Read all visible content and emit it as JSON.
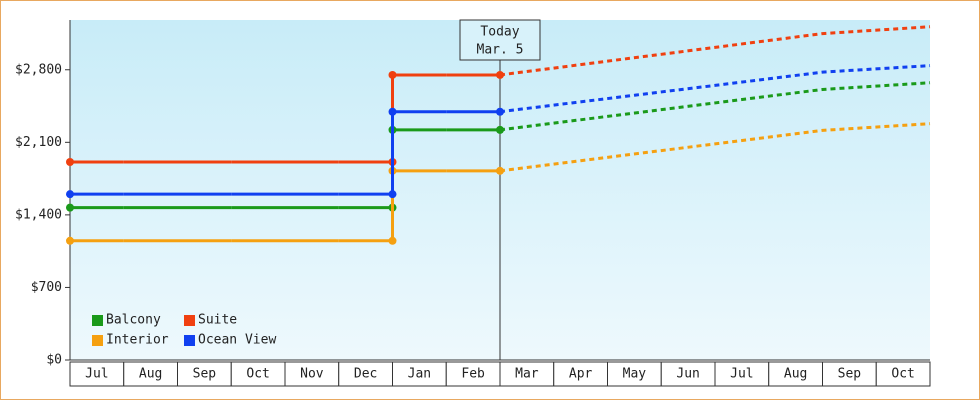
{
  "chart_data": {
    "type": "step-line",
    "categories": [
      "Jul",
      "Aug",
      "Sep",
      "Oct",
      "Nov",
      "Dec",
      "Jan",
      "Feb",
      "Mar",
      "Apr",
      "May",
      "Jun",
      "Jul",
      "Aug",
      "Sep",
      "Oct"
    ],
    "series": [
      {
        "name": "Balcony",
        "color": "#1a9a1a",
        "values": [
          1470,
          1470,
          1470,
          1470,
          1470,
          1470,
          2220,
          2220,
          2220,
          2285,
          2350,
          2415,
          2480,
          2545,
          2610,
          2675
        ]
      },
      {
        "name": "Suite",
        "color": "#f04010",
        "values": [
          1910,
          1910,
          1910,
          1910,
          1910,
          1910,
          2750,
          2750,
          2750,
          2816,
          2883,
          2949,
          3016,
          3082,
          3149,
          3215
        ]
      },
      {
        "name": "Interior",
        "color": "#f5a010",
        "values": [
          1150,
          1150,
          1150,
          1150,
          1150,
          1150,
          1825,
          1825,
          1825,
          1890,
          1955,
          2020,
          2085,
          2150,
          2215,
          2280
        ]
      },
      {
        "name": "Ocean View",
        "color": "#1040f0",
        "values": [
          1600,
          1600,
          1600,
          1600,
          1600,
          1600,
          2395,
          2395,
          2395,
          2459,
          2522,
          2586,
          2649,
          2713,
          2777,
          2840
        ]
      }
    ],
    "today": {
      "lines": [
        "Today",
        "Mar. 5"
      ],
      "category": "Mar"
    },
    "ylim": [
      0,
      3280
    ],
    "yticks": [
      {
        "value": 0,
        "label": "$0"
      },
      {
        "value": 700,
        "label": "$700"
      },
      {
        "value": 1400,
        "label": "$1,400"
      },
      {
        "value": 2100,
        "label": "$2,100"
      },
      {
        "value": 2800,
        "label": "$2,800"
      }
    ],
    "legend": "bottom-left"
  }
}
